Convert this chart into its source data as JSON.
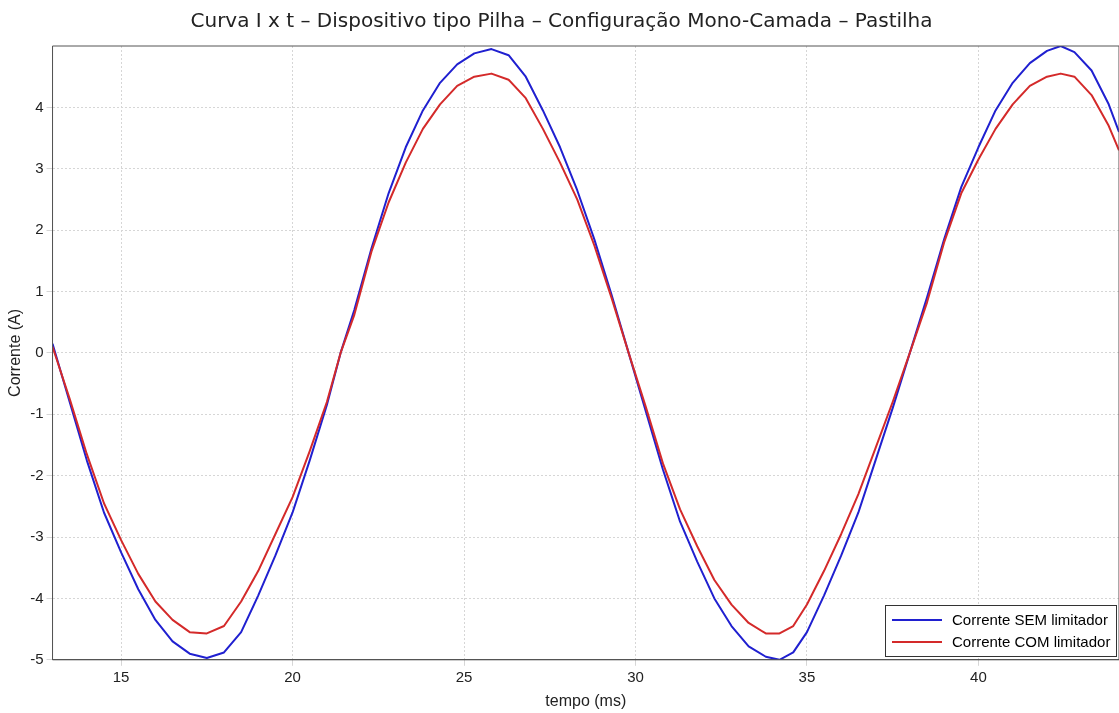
{
  "chart_data": {
    "type": "line",
    "title": "Curva I x t – Dispositivo tipo Pilha – Configuração Mono-Camada – Pastilha",
    "xlabel": "tempo (ms)",
    "ylabel": "Corrente (A)",
    "x": [
      13.0,
      13.5,
      14.0,
      14.5,
      15.0,
      15.5,
      16.0,
      16.5,
      17.0,
      17.5,
      18.0,
      18.5,
      19.0,
      19.5,
      20.0,
      20.5,
      21.0,
      21.4,
      21.8,
      22.3,
      22.8,
      23.3,
      23.8,
      24.3,
      24.8,
      25.3,
      25.8,
      26.3,
      26.8,
      27.3,
      27.8,
      28.3,
      28.8,
      29.3,
      29.8,
      30.3,
      30.8,
      31.3,
      31.8,
      32.3,
      32.8,
      33.3,
      33.8,
      34.2,
      34.6,
      35.0,
      35.5,
      36.0,
      36.5,
      37.0,
      37.5,
      38.0,
      38.5,
      39.0,
      39.5,
      40.0,
      40.5,
      41.0,
      41.5,
      42.0,
      42.4,
      42.8,
      43.3,
      43.8,
      44.1
    ],
    "series": [
      {
        "name": "Corrente SEM limitador",
        "color": "#2020d0",
        "values": [
          0.15,
          -0.8,
          -1.75,
          -2.6,
          -3.25,
          -3.85,
          -4.35,
          -4.7,
          -4.9,
          -4.97,
          -4.88,
          -4.55,
          -3.95,
          -3.3,
          -2.6,
          -1.75,
          -0.85,
          0.0,
          0.7,
          1.7,
          2.6,
          3.35,
          3.95,
          4.4,
          4.7,
          4.88,
          4.95,
          4.85,
          4.5,
          3.95,
          3.35,
          2.65,
          1.85,
          0.95,
          0.0,
          -0.95,
          -1.9,
          -2.75,
          -3.4,
          -4.0,
          -4.45,
          -4.78,
          -4.95,
          -5.0,
          -4.88,
          -4.55,
          -3.95,
          -3.3,
          -2.6,
          -1.75,
          -0.9,
          0.0,
          0.9,
          1.85,
          2.7,
          3.35,
          3.95,
          4.4,
          4.72,
          4.92,
          5.0,
          4.9,
          4.6,
          4.05,
          3.6
        ]
      },
      {
        "name": "Corrente COM limitador",
        "color": "#d42a2a",
        "values": [
          0.1,
          -0.75,
          -1.65,
          -2.45,
          -3.05,
          -3.6,
          -4.05,
          -4.35,
          -4.55,
          -4.57,
          -4.45,
          -4.05,
          -3.55,
          -2.95,
          -2.35,
          -1.6,
          -0.8,
          0.0,
          0.62,
          1.65,
          2.45,
          3.1,
          3.65,
          4.05,
          4.35,
          4.5,
          4.55,
          4.45,
          4.15,
          3.65,
          3.1,
          2.5,
          1.75,
          0.9,
          0.0,
          -0.88,
          -1.8,
          -2.55,
          -3.15,
          -3.7,
          -4.1,
          -4.4,
          -4.57,
          -4.57,
          -4.45,
          -4.1,
          -3.55,
          -2.95,
          -2.3,
          -1.55,
          -0.8,
          0.0,
          0.82,
          1.8,
          2.6,
          3.15,
          3.65,
          4.05,
          4.35,
          4.5,
          4.55,
          4.5,
          4.2,
          3.7,
          3.3
        ]
      }
    ],
    "xlim": [
      13,
      44.1
    ],
    "ylim": [
      -5,
      5
    ],
    "xticks": [
      15,
      20,
      25,
      30,
      35,
      40
    ],
    "yticks": [
      -5,
      -4,
      -3,
      -2,
      -1,
      0,
      1,
      2,
      3,
      4
    ],
    "grid": true,
    "legend": "bottom right",
    "marker": "none",
    "line_style": "solid"
  }
}
